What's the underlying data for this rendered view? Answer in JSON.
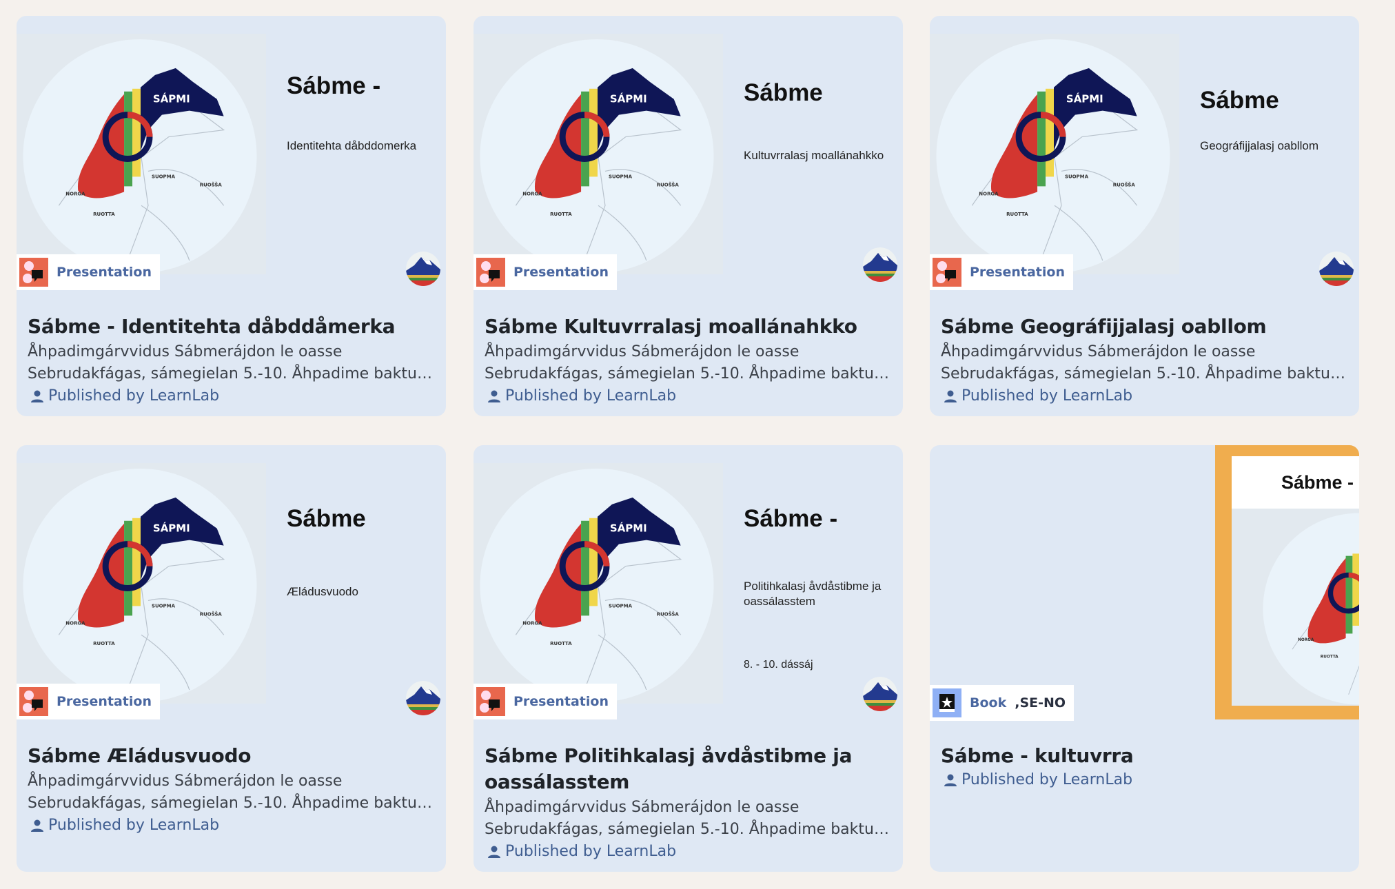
{
  "colors": {
    "background": "#f5f1ed",
    "card": "#dfe8f4",
    "presentation_badge": "#e8674d",
    "book_badge": "#8fb0f5",
    "accent": "#3f5d90",
    "book_frame": "#f0ad4e"
  },
  "map_labels": {
    "sapmi": "SÁPMI",
    "suopma": "SUOPMA",
    "norga": "NORGA",
    "ruotta": "RUOTTA",
    "ruossa": "RUOŠŠA"
  },
  "cards": [
    {
      "type": "presentation",
      "badge": "Presentation",
      "badge_icon": "presentation-icon",
      "slide_title": "Sábme -",
      "slide_subtitle": "Identitehta dåbddomerka",
      "slide_extra": "",
      "title": "Sábme - Identitehta dåbddåmerka",
      "description_lines": [
        "Åhpadimgárvvidus Sábmerájdon le oasse",
        "Sebrudakfágas, sámegielan 5.-10. Åhpadime baktu…"
      ],
      "publisher": "Published by LearnLab"
    },
    {
      "type": "presentation",
      "badge": "Presentation",
      "badge_icon": "presentation-icon",
      "slide_title": "Sábme",
      "slide_subtitle": "Kultuvrralasj moallánahkko",
      "slide_extra": "",
      "title": "Sábme Kultuvrralasj moallánahkko",
      "description_lines": [
        "Åhpadimgárvvidus Sábmerájdon le oasse",
        "Sebrudakfágas, sámegielan 5.-10. Åhpadime baktu…"
      ],
      "publisher": "Published by LearnLab"
    },
    {
      "type": "presentation",
      "badge": "Presentation",
      "badge_icon": "presentation-icon",
      "slide_title": "Sábme",
      "slide_subtitle": "Geográfijjalasj oabllom",
      "slide_extra": "",
      "title": "Sábme Geográfijjalasj oabllom",
      "description_lines": [
        "Åhpadimgárvvidus Sábmerájdon le oasse",
        "Sebrudakfágas, sámegielan 5.-10. Åhpadime baktu…"
      ],
      "publisher": "Published by LearnLab"
    },
    {
      "type": "presentation",
      "badge": "Presentation",
      "badge_icon": "presentation-icon",
      "slide_title": "Sábme",
      "slide_subtitle": "Æládusvuodo",
      "slide_extra": "",
      "title": "Sábme Æládusvuodo",
      "description_lines": [
        "Åhpadimgárvvidus Sábmerájdon le oasse",
        "Sebrudakfágas, sámegielan 5.-10. Åhpadime baktu…"
      ],
      "publisher": "Published by LearnLab"
    },
    {
      "type": "presentation",
      "badge": "Presentation",
      "badge_icon": "presentation-icon",
      "slide_title": "Sábme -",
      "slide_subtitle": "Politihkalasj åvdåstibme ja oassálasstem",
      "slide_extra": "8. - 10. dássáj",
      "title": "Sábme Politihkalasj åvdåstibme ja oassálasstem",
      "description_lines": [
        "Åhpadimgárvvidus Sábmerájdon le oasse",
        "Sebrudakfágas, sámegielan 5.-10. Åhpadime baktu…"
      ],
      "publisher": "Published by LearnLab"
    },
    {
      "type": "book",
      "badge": "Book",
      "badge_extra": ",SE-NO",
      "badge_icon": "book-icon",
      "cover_title": "Sábme - kultuvrra",
      "title": "Sábme - kultuvrra",
      "description_lines": [],
      "publisher": "Published by LearnLab"
    }
  ]
}
